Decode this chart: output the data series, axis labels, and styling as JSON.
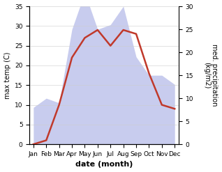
{
  "months": [
    "Jan",
    "Feb",
    "Mar",
    "Apr",
    "May",
    "Jun",
    "Jul",
    "Aug",
    "Sep",
    "Oct",
    "Nov",
    "Dec"
  ],
  "temperature": [
    0,
    1,
    10,
    22,
    27,
    29,
    25,
    29,
    28,
    18,
    10,
    9
  ],
  "precipitation": [
    8,
    10,
    9,
    25,
    33,
    25,
    26,
    30,
    19,
    15,
    15,
    13
  ],
  "temp_color": "#c0392b",
  "precip_fill_color": "#c8ccee",
  "background_color": "#ffffff",
  "ylabel_left": "max temp (C)",
  "ylabel_right": "med. precipitation\n(kg/m2)",
  "xlabel": "date (month)",
  "ylim_left": [
    0,
    35
  ],
  "ylim_right": [
    0,
    30
  ],
  "label_fontsize": 7,
  "tick_fontsize": 6.5
}
